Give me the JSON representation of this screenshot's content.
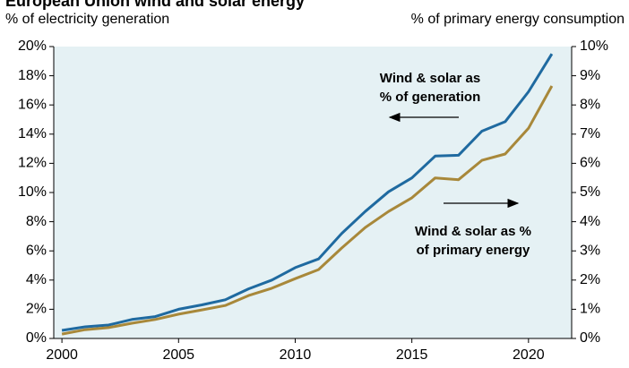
{
  "chart_data": {
    "type": "line",
    "title": "European Union wind and solar energy",
    "y_label": "% of electricity generation",
    "y2_label": "% of primary energy consumption",
    "x": [
      2000,
      2001,
      2002,
      2003,
      2004,
      2005,
      2006,
      2007,
      2008,
      2009,
      2010,
      2011,
      2012,
      2013,
      2014,
      2015,
      2016,
      2017,
      2018,
      2019,
      2020,
      2021
    ],
    "series": [
      {
        "name": "Wind & solar as % of generation",
        "color": "#1f6aa0",
        "values": [
          0.55,
          0.8,
          0.92,
          1.3,
          1.5,
          2.0,
          2.3,
          2.65,
          3.4,
          4.0,
          4.85,
          5.45,
          7.2,
          8.7,
          10.05,
          11.0,
          12.5,
          12.55,
          14.2,
          14.85,
          16.9,
          19.5
        ]
      },
      {
        "name": "Wind & solar as % of primary energy",
        "color": "#a8883a",
        "axis": "y2",
        "values": [
          0.15,
          0.3,
          0.37,
          0.52,
          0.65,
          0.83,
          0.98,
          1.13,
          1.47,
          1.72,
          2.05,
          2.36,
          3.1,
          3.8,
          4.35,
          4.82,
          5.5,
          5.44,
          6.1,
          6.32,
          7.2,
          8.65
        ]
      }
    ],
    "annotations": [
      {
        "lines": [
          "Wind & solar as",
          "% of generation"
        ]
      },
      {
        "lines": [
          "Wind & solar as %",
          "of primary energy"
        ]
      }
    ],
    "xlim": [
      1999.65,
      2021.85
    ],
    "xticks": [
      2000,
      2005,
      2010,
      2015,
      2020
    ],
    "ylim": [
      0,
      20
    ],
    "yticks": [
      {
        "value": 0,
        "label": "0%"
      },
      {
        "value": 2,
        "label": "2%"
      },
      {
        "value": 4,
        "label": "4%"
      },
      {
        "value": 6,
        "label": "6%"
      },
      {
        "value": 8,
        "label": "8%"
      },
      {
        "value": 10,
        "label": "10%"
      },
      {
        "value": 12,
        "label": "12%"
      },
      {
        "value": 14,
        "label": "14%"
      },
      {
        "value": 16,
        "label": "16%"
      },
      {
        "value": 18,
        "label": "18%"
      },
      {
        "value": 20,
        "label": "20%"
      }
    ],
    "y2lim": [
      0,
      10
    ],
    "y2ticks": [
      {
        "value": 0,
        "label": "0%"
      },
      {
        "value": 1,
        "label": "1%"
      },
      {
        "value": 2,
        "label": "2%"
      },
      {
        "value": 3,
        "label": "3%"
      },
      {
        "value": 4,
        "label": "4%"
      },
      {
        "value": 5,
        "label": "5%"
      },
      {
        "value": 6,
        "label": "6%"
      },
      {
        "value": 7,
        "label": "7%"
      },
      {
        "value": 8,
        "label": "8%"
      },
      {
        "value": 9,
        "label": "9%"
      },
      {
        "value": 10,
        "label": "10%"
      }
    ]
  }
}
